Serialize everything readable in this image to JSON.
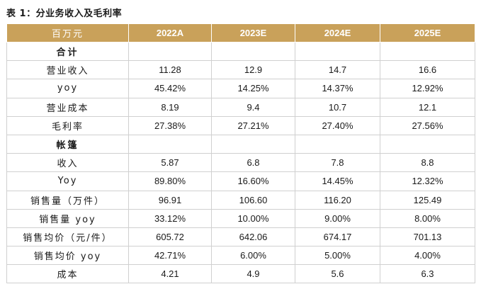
{
  "title": "表 1：分业务收入及毛利率",
  "header": [
    "百万元",
    "2022A",
    "2023E",
    "2024E",
    "2025E"
  ],
  "rows": [
    {
      "label": "合计",
      "section": true,
      "values": [
        "",
        "",
        "",
        ""
      ]
    },
    {
      "label": "营业收入",
      "values": [
        "11.28",
        "12.9",
        "14.7",
        "16.6"
      ]
    },
    {
      "label": "yoy",
      "values": [
        "45.42%",
        "14.25%",
        "14.37%",
        "12.92%"
      ]
    },
    {
      "label": "营业成本",
      "values": [
        "8.19",
        "9.4",
        "10.7",
        "12.1"
      ]
    },
    {
      "label": "毛利率",
      "values": [
        "27.38%",
        "27.21%",
        "27.40%",
        "27.56%"
      ]
    },
    {
      "label": "帐篷",
      "section": true,
      "values": [
        "",
        "",
        "",
        ""
      ]
    },
    {
      "label": "收入",
      "values": [
        "5.87",
        "6.8",
        "7.8",
        "8.8"
      ]
    },
    {
      "label": "Yoy",
      "values": [
        "89.80%",
        "16.60%",
        "14.45%",
        "12.32%"
      ]
    },
    {
      "label": "销售量（万件）",
      "values": [
        "96.91",
        "106.60",
        "116.20",
        "125.49"
      ]
    },
    {
      "label": "销售量 yoy",
      "values": [
        "33.12%",
        "10.00%",
        "9.00%",
        "8.00%"
      ]
    },
    {
      "label": "销售均价（元/件）",
      "values": [
        "605.72",
        "642.06",
        "674.17",
        "701.13"
      ]
    },
    {
      "label": "销售均价 yoy",
      "values": [
        "42.71%",
        "6.00%",
        "5.00%",
        "4.00%"
      ]
    },
    {
      "label": "成本",
      "values": [
        "4.21",
        "4.9",
        "5.6",
        "6.3"
      ]
    }
  ]
}
